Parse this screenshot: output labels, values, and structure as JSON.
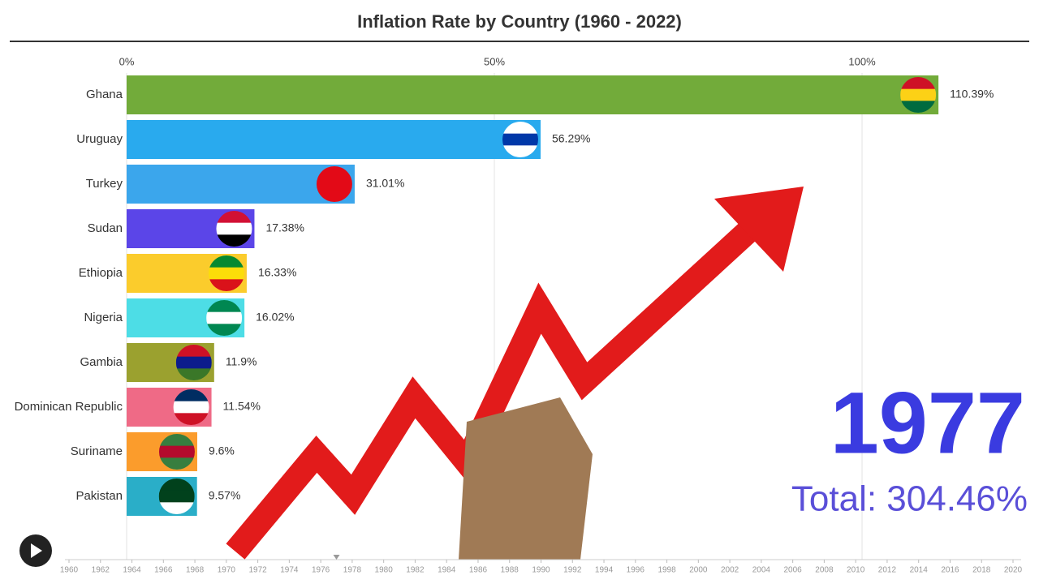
{
  "chart_data": {
    "type": "bar",
    "orientation": "horizontal",
    "title": "Inflation Rate by Country (1960 - 2022)",
    "categories": [
      "Ghana",
      "Uruguay",
      "Turkey",
      "Sudan",
      "Ethiopia",
      "Nigeria",
      "Gambia",
      "Dominican Republic",
      "Suriname",
      "Pakistan"
    ],
    "values": [
      110.39,
      56.29,
      31.01,
      17.38,
      16.33,
      16.02,
      11.9,
      11.54,
      9.6,
      9.57
    ],
    "value_labels": [
      "110.39%",
      "56.29%",
      "31.01%",
      "17.38%",
      "16.33%",
      "16.02%",
      "11.9%",
      "11.54%",
      "9.6%",
      "9.57%"
    ],
    "colors": [
      "#72ab3a",
      "#29aaee",
      "#3ba6ec",
      "#5b45e8",
      "#fbcc2c",
      "#4ddde6",
      "#9ba12f",
      "#ef6a86",
      "#fb9c2c",
      "#2aaec8"
    ],
    "xlim": [
      0,
      120
    ],
    "xticks": [
      {
        "value": 0,
        "label": "0%"
      },
      {
        "value": 50,
        "label": "50%"
      },
      {
        "value": 100,
        "label": "100%"
      }
    ],
    "grid": true,
    "year": 1977,
    "total_label": "Total: 304.46%",
    "timeline": {
      "xlim": [
        1960,
        2020
      ],
      "xticks": [
        1960,
        1962,
        1964,
        1966,
        1968,
        1970,
        1972,
        1974,
        1976,
        1978,
        1980,
        1982,
        1984,
        1986,
        1988,
        1990,
        1992,
        1994,
        1996,
        1998,
        2000,
        2002,
        2004,
        2006,
        2008,
        2010,
        2012,
        2014,
        2016,
        2018,
        2020
      ]
    }
  }
}
